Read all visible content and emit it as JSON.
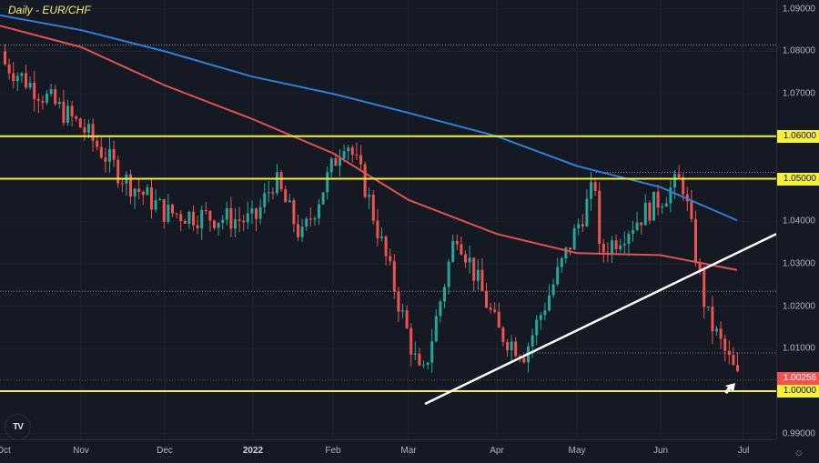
{
  "chart_data": {
    "type": "candlestick",
    "title": "Daily - EUR/CHF",
    "symbol": "EUR/CHF",
    "timeframe": "Daily",
    "xlabel": "",
    "ylabel": "",
    "ylim": [
      0.985,
      1.092
    ],
    "grid": true,
    "x_ticks": [
      "Oct",
      "Nov",
      "Dec",
      "2022",
      "Feb",
      "Mar",
      "Apr",
      "May",
      "Jun",
      "Jul"
    ],
    "y_ticks": [
      "1.09000",
      "1.08000",
      "1.07000",
      "1.06000",
      "1.05000",
      "1.04000",
      "1.03000",
      "1.02000",
      "1.01000",
      "1.00000",
      "0.99000"
    ],
    "last_price": 1.00256,
    "horizontal_levels": [
      {
        "price": 1.06,
        "color": "#f5f03c",
        "label": "1.06000"
      },
      {
        "price": 1.05,
        "color": "#f5f03c",
        "label": "1.05000"
      },
      {
        "price": 1.0,
        "color": "#f5f03c",
        "label": "1.00000"
      }
    ],
    "dotted_levels": [
      1.0815,
      1.0515,
      1.0235,
      1.009,
      1.0026
    ],
    "trendline": {
      "from": {
        "date": "2022-03-07",
        "price": 0.997
      },
      "to": {
        "date": "2022-07-05",
        "price": 1.037
      },
      "color": "#ffffff"
    },
    "series": [
      {
        "name": "MA (blue, longer-period)",
        "color": "#2f7fd6",
        "values": [
          {
            "date": "Oct",
            "price": 1.0885
          },
          {
            "date": "Nov",
            "price": 1.085
          },
          {
            "date": "Dec",
            "price": 1.08
          },
          {
            "date": "2022",
            "price": 1.074
          },
          {
            "date": "Feb",
            "price": 1.07
          },
          {
            "date": "Mar",
            "price": 1.0655
          },
          {
            "date": "Apr",
            "price": 1.06
          },
          {
            "date": "May",
            "price": 1.053
          },
          {
            "date": "Jun",
            "price": 1.048
          },
          {
            "date": "late Jun",
            "price": 1.0402
          }
        ]
      },
      {
        "name": "MA (red, shorter-period)",
        "color": "#e0534e",
        "values": [
          {
            "date": "Oct",
            "price": 1.086
          },
          {
            "date": "Nov",
            "price": 1.081
          },
          {
            "date": "Dec",
            "price": 1.072
          },
          {
            "date": "2022",
            "price": 1.064
          },
          {
            "date": "Feb",
            "price": 1.056
          },
          {
            "date": "Mar",
            "price": 1.045
          },
          {
            "date": "Apr",
            "price": 1.037
          },
          {
            "date": "May",
            "price": 1.0325
          },
          {
            "date": "Jun",
            "price": 1.032
          },
          {
            "date": "late Jun",
            "price": 1.0285
          }
        ]
      }
    ],
    "candles_approx": [
      {
        "date": "early Oct",
        "close": 1.077
      },
      {
        "date": "Nov",
        "close": 1.062
      },
      {
        "date": "late Nov",
        "close": 1.05
      },
      {
        "date": "Dec",
        "close": 1.042
      },
      {
        "date": "2022",
        "close": 1.04
      },
      {
        "date": "mid Jan",
        "close": 1.05
      },
      {
        "date": "late Jan",
        "close": 1.036
      },
      {
        "date": "early Feb",
        "close": 1.06
      },
      {
        "date": "Feb",
        "close": 1.048
      },
      {
        "date": "Mar low",
        "close": 1.002
      },
      {
        "date": "late Mar",
        "close": 1.038
      },
      {
        "date": "Apr",
        "close": 1.014
      },
      {
        "date": "late Apr",
        "close": 1.009
      },
      {
        "date": "May",
        "close": 1.05
      },
      {
        "date": "late May",
        "close": 1.025
      },
      {
        "date": "Jun",
        "close": 1.05
      },
      {
        "date": "mid Jun",
        "close": 1.018
      },
      {
        "date": "late Jun",
        "close": 1.00256
      }
    ],
    "annotations": [
      {
        "type": "arrow",
        "near_price": 1.0,
        "date": "late Jun",
        "color": "#ffffff"
      }
    ]
  },
  "ui": {
    "title": "Daily - EUR/CHF",
    "last_price_label": "1.00256",
    "last_price_color": "#f05350",
    "level_color": "#f5f03c",
    "logo_text": "TV",
    "settings_icon": "gear-icon"
  }
}
